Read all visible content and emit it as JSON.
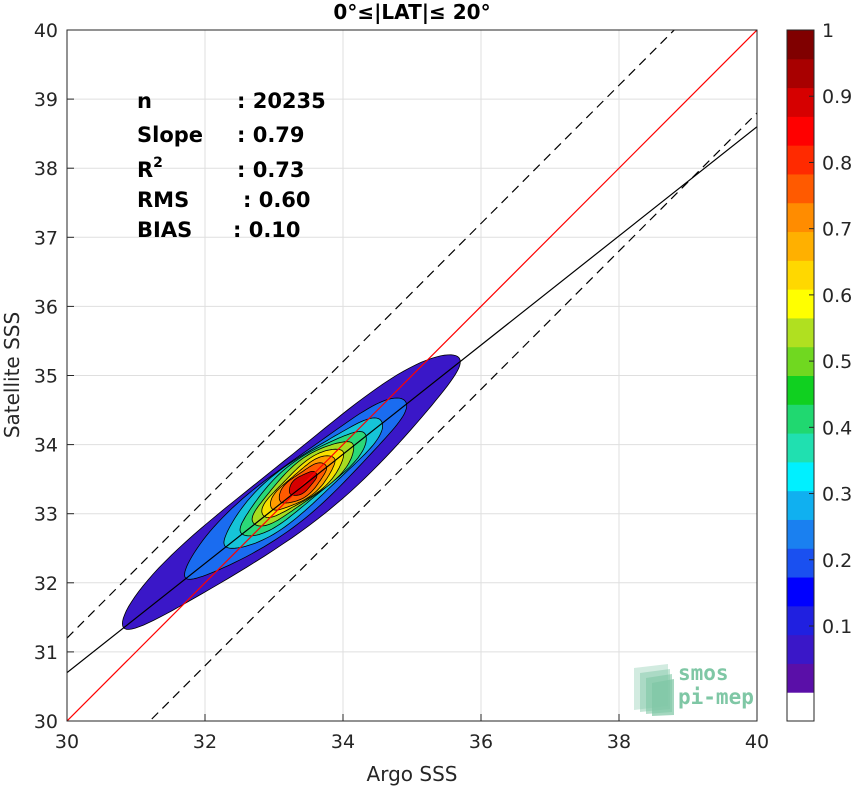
{
  "chart_data": {
    "type": "contour",
    "title": "0°≤|LAT|≤ 20°",
    "xlabel": "Argo SSS",
    "ylabel": "Satellite SSS",
    "xlim": [
      30,
      40
    ],
    "ylim": [
      30,
      40
    ],
    "xticks": [
      "30",
      "32",
      "34",
      "36",
      "38",
      "40"
    ],
    "yticks": [
      "30",
      "31",
      "32",
      "33",
      "34",
      "35",
      "36",
      "37",
      "38",
      "39",
      "40"
    ],
    "grid": true,
    "stats": [
      {
        "label": "n",
        "value": ": 20235"
      },
      {
        "label": "Slope",
        "value": ": 0.79"
      },
      {
        "label": "R",
        "sup": "2",
        "value": ": 0.73"
      },
      {
        "label": "RMS",
        "value": ": 0.60"
      },
      {
        "label": "BIAS",
        "value": ": 0.10"
      }
    ],
    "lines": [
      {
        "kind": "identity",
        "color": "#ff0000",
        "style": "solid",
        "slope": 1,
        "intercept": 0
      },
      {
        "kind": "regression",
        "color": "#000000",
        "style": "solid",
        "slope": 0.79,
        "intercept": 7.0
      },
      {
        "kind": "upper-bound",
        "color": "#000000",
        "style": "dashed",
        "slope": 1,
        "intercept": 1.2
      },
      {
        "kind": "lower-bound",
        "color": "#000000",
        "style": "dashed",
        "slope": 1,
        "intercept": -1.2
      }
    ],
    "density": {
      "center": [
        33.42,
        33.44
      ],
      "direction": [
        0.78,
        0.626
      ],
      "levels": [
        {
          "value": 0.05,
          "color": "#3a17c8",
          "a": 2.9,
          "b": 0.48
        },
        {
          "value": 0.25,
          "color": "#1a6cf0",
          "a": 1.9,
          "b": 0.38
        },
        {
          "value": 0.35,
          "color": "#16c4d8",
          "a": 1.45,
          "b": 0.33
        },
        {
          "value": 0.45,
          "color": "#2bd878",
          "a": 1.15,
          "b": 0.29
        },
        {
          "value": 0.55,
          "color": "#a6dc20",
          "a": 0.92,
          "b": 0.26
        },
        {
          "value": 0.65,
          "color": "#f8df00",
          "a": 0.74,
          "b": 0.22
        },
        {
          "value": 0.75,
          "color": "#ff9c00",
          "a": 0.58,
          "b": 0.19
        },
        {
          "value": 0.85,
          "color": "#ff5a00",
          "a": 0.42,
          "b": 0.16
        },
        {
          "value": 0.95,
          "color": "#d60000",
          "a": 0.24,
          "b": 0.11
        }
      ]
    },
    "colorbar": {
      "ticks": [
        "0.1",
        "0.2",
        "0.3",
        "0.4",
        "0.5",
        "0.6",
        "0.7",
        "0.8",
        "0.9",
        "1"
      ],
      "colors": [
        "#ffffff",
        "#5a0fa8",
        "#3a17c8",
        "#2020e0",
        "#0000ff",
        "#1a50f0",
        "#1a80f0",
        "#10b0f0",
        "#00f0ff",
        "#20e0b0",
        "#20d870",
        "#10d020",
        "#70d820",
        "#b0e020",
        "#ffff00",
        "#ffd800",
        "#ffb000",
        "#ff8c00",
        "#ff5a00",
        "#ff2a00",
        "#ff0000",
        "#d60000",
        "#a80000",
        "#800000"
      ]
    },
    "logo": {
      "line1": "smos",
      "line2": "pi-mep"
    }
  }
}
